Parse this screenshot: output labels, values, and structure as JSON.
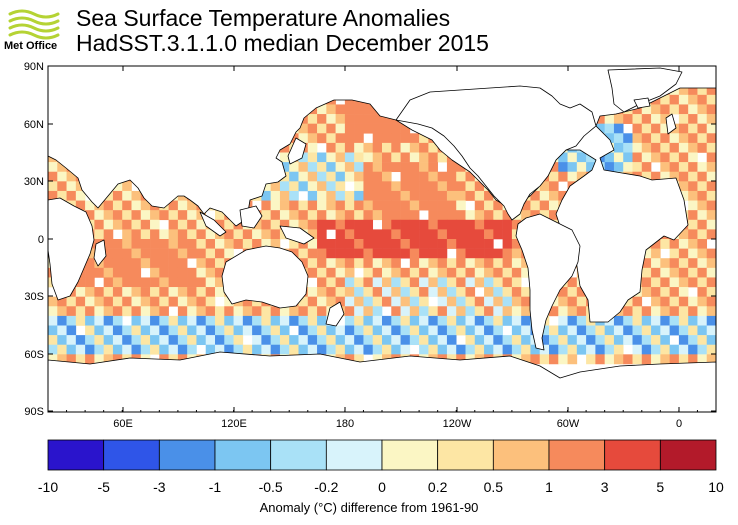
{
  "header": {
    "logo_text": "Met Office",
    "title_line1": "Sea Surface Temperature Anomalies",
    "title_line2": "HadSST.3.1.1.0 median December 2015"
  },
  "map": {
    "lat_labels": [
      "90N",
      "60N",
      "30N",
      "0",
      "30S",
      "60S",
      "90S"
    ],
    "lon_labels": [
      "60E",
      "120E",
      "180",
      "120W",
      "60W",
      "0"
    ],
    "colors": {
      "land": "#ffffff",
      "coast": "#000000",
      "missing": "#ffffff"
    }
  },
  "colorbar": {
    "labels": [
      "-10",
      "-5",
      "-3",
      "-1",
      "-0.5",
      "-0.2",
      "0",
      "0.2",
      "0.5",
      "1",
      "3",
      "5",
      "10"
    ],
    "colors": [
      "#2a14cc",
      "#2f55e8",
      "#4a90e8",
      "#7cc6f2",
      "#a9e1f7",
      "#d8f3fb",
      "#fbf6c4",
      "#fde6a4",
      "#fcc07c",
      "#f68a5c",
      "#e64a3c",
      "#b31a2a"
    ],
    "caption": "Anomaly (°C) difference from 1961-90"
  }
}
